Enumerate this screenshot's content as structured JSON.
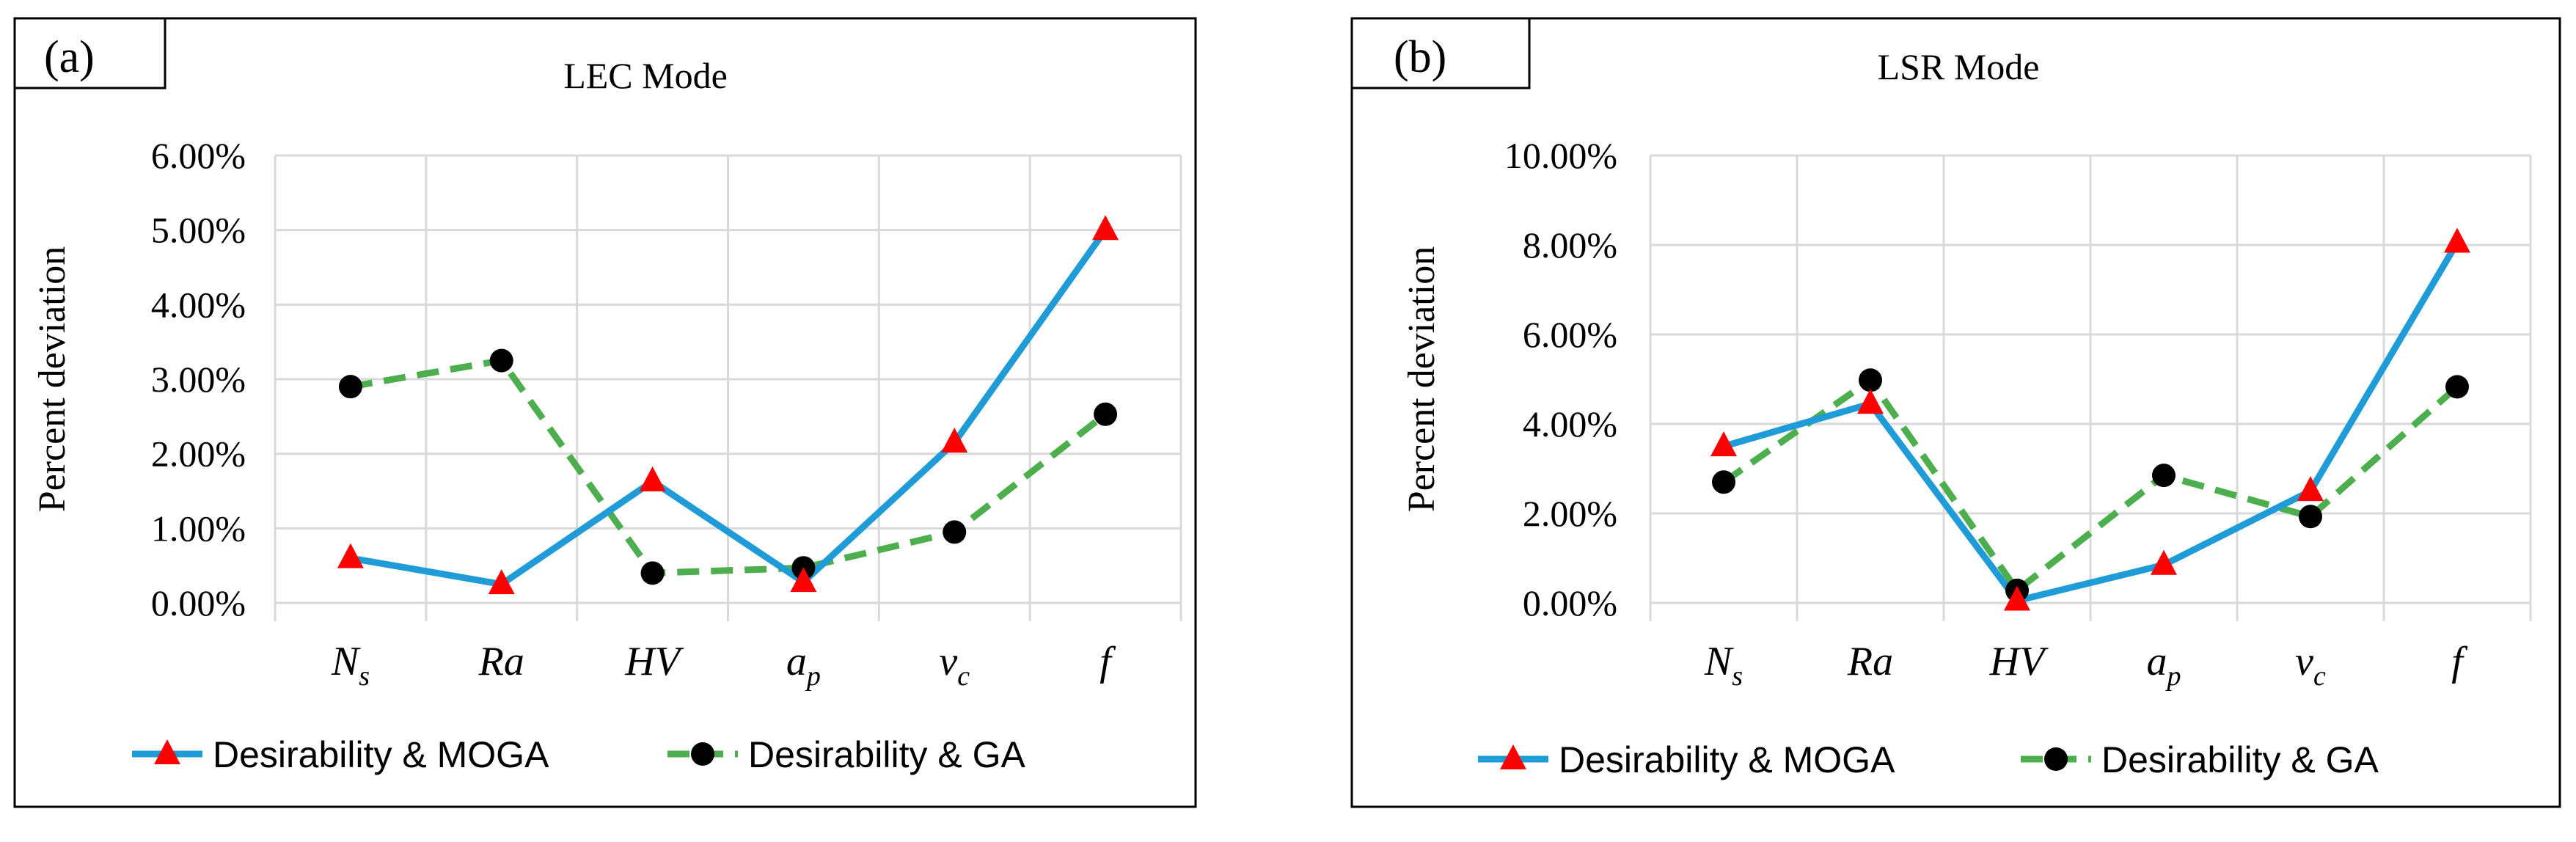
{
  "chart_data": [
    {
      "panel_label": "(a)",
      "type": "line",
      "title": "LEC Mode",
      "xlabel": "",
      "ylabel": "Percent deviation",
      "ylim": [
        0,
        6
      ],
      "yticks": [
        "0.00%",
        "1.00%",
        "2.00%",
        "3.00%",
        "4.00%",
        "5.00%",
        "6.00%"
      ],
      "grid": true,
      "legend_position": "bottom",
      "categories": [
        {
          "base": "N",
          "sub": "s"
        },
        {
          "base": "Ra",
          "sub": ""
        },
        {
          "base": "HV",
          "sub": ""
        },
        {
          "base": "a",
          "sub": "p"
        },
        {
          "base": "v",
          "sub": "c"
        },
        {
          "base": "f",
          "sub": ""
        }
      ],
      "series": [
        {
          "name": "Desirability & MOGA",
          "values": [
            0.6,
            0.25,
            1.63,
            0.28,
            2.15,
            5.0
          ],
          "color": "#1f9bd7",
          "marker": "triangle",
          "marker_color": "#ff0000",
          "dash": false
        },
        {
          "name": "Desirability & GA",
          "values": [
            2.9,
            3.25,
            0.4,
            0.47,
            0.95,
            2.53
          ],
          "color": "#4cae4c",
          "marker": "circle",
          "marker_color": "#000000",
          "dash": true
        }
      ]
    },
    {
      "panel_label": "(b)",
      "type": "line",
      "title": "LSR Mode",
      "xlabel": "",
      "ylabel": "Percent deviation",
      "ylim": [
        0,
        10
      ],
      "yticks": [
        "0.00%",
        "2.00%",
        "4.00%",
        "6.00%",
        "8.00%",
        "10.00%"
      ],
      "grid": true,
      "legend_position": "bottom",
      "categories": [
        {
          "base": "N",
          "sub": "s"
        },
        {
          "base": "Ra",
          "sub": ""
        },
        {
          "base": "HV",
          "sub": ""
        },
        {
          "base": "a",
          "sub": "p"
        },
        {
          "base": "v",
          "sub": "c"
        },
        {
          "base": "f",
          "sub": ""
        }
      ],
      "series": [
        {
          "name": "Desirability & MOGA",
          "values": [
            3.5,
            4.45,
            0.05,
            0.85,
            2.5,
            8.05
          ],
          "color": "#1f9bd7",
          "marker": "triangle",
          "marker_color": "#ff0000",
          "dash": false
        },
        {
          "name": "Desirability & GA",
          "values": [
            2.7,
            4.98,
            0.28,
            2.85,
            1.93,
            4.83
          ],
          "color": "#4cae4c",
          "marker": "circle",
          "marker_color": "#000000",
          "dash": true
        }
      ]
    }
  ]
}
